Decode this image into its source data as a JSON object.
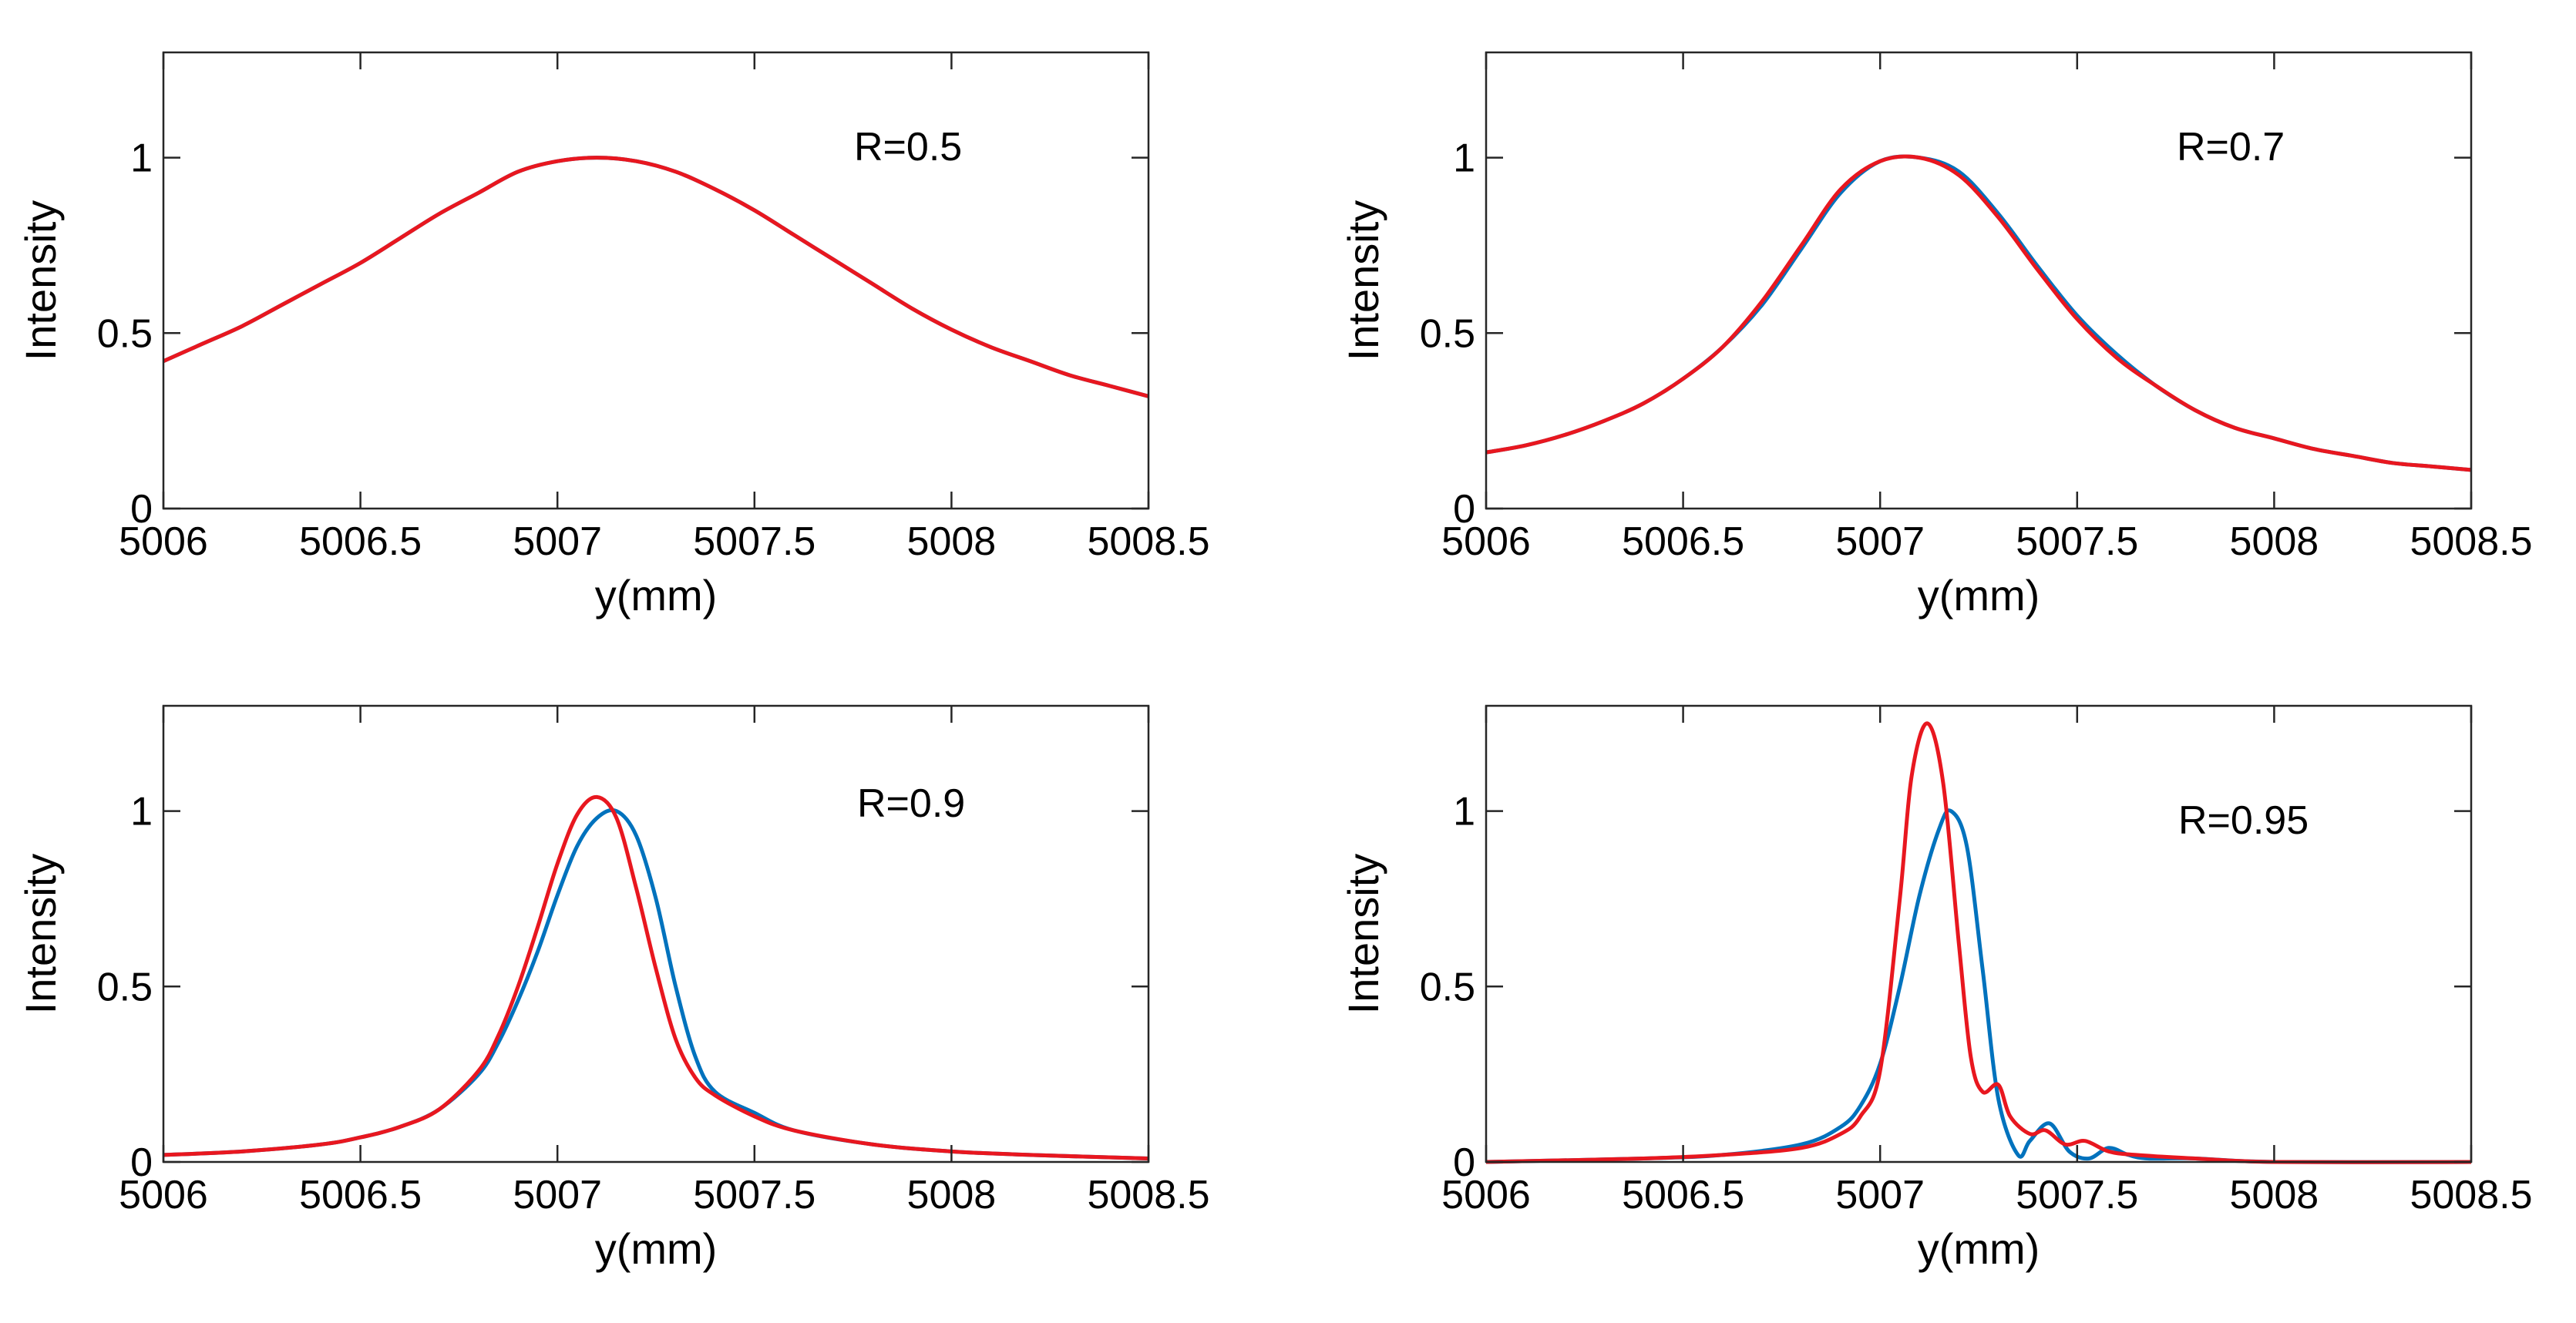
{
  "colors": {
    "series_blue": "#0072BD",
    "series_red": "#E8171F",
    "axis": "#262626"
  },
  "chart_data": [
    {
      "type": "line",
      "xlabel": "y(mm)",
      "ylabel": "Intensity",
      "xlim": [
        5006,
        5008.5
      ],
      "ylim": [
        0,
        1.3
      ],
      "xticks": [
        5006,
        5006.5,
        5007,
        5007.5,
        5008,
        5008.5
      ],
      "xtick_labels": [
        "5006",
        "5006.5",
        "5007",
        "5007.5",
        "5008",
        "5008.5"
      ],
      "yticks": [
        0,
        0.5,
        1
      ],
      "ytick_labels": [
        "0",
        "0.5",
        "1"
      ],
      "annotation": "R=0.5",
      "series": [
        {
          "name": "blue",
          "x": [
            5006,
            5006.1,
            5006.2,
            5006.3,
            5006.4,
            5006.5,
            5006.6,
            5006.7,
            5006.8,
            5006.9,
            5007,
            5007.1,
            5007.2,
            5007.3,
            5007.4,
            5007.5,
            5007.6,
            5007.7,
            5007.8,
            5007.9,
            5008,
            5008.1,
            5008.2,
            5008.3,
            5008.4,
            5008.5
          ],
          "values": [
            0.42,
            0.47,
            0.52,
            0.58,
            0.64,
            0.7,
            0.77,
            0.84,
            0.9,
            0.96,
            0.99,
            1.0,
            0.99,
            0.96,
            0.91,
            0.85,
            0.78,
            0.71,
            0.64,
            0.57,
            0.51,
            0.46,
            0.42,
            0.38,
            0.35,
            0.32
          ]
        },
        {
          "name": "red",
          "x": [
            5006,
            5006.1,
            5006.2,
            5006.3,
            5006.4,
            5006.5,
            5006.6,
            5006.7,
            5006.8,
            5006.9,
            5007,
            5007.1,
            5007.2,
            5007.3,
            5007.4,
            5007.5,
            5007.6,
            5007.7,
            5007.8,
            5007.9,
            5008,
            5008.1,
            5008.2,
            5008.3,
            5008.4,
            5008.5
          ],
          "values": [
            0.42,
            0.47,
            0.52,
            0.58,
            0.64,
            0.7,
            0.77,
            0.84,
            0.9,
            0.96,
            0.99,
            1.0,
            0.99,
            0.96,
            0.91,
            0.85,
            0.78,
            0.71,
            0.64,
            0.57,
            0.51,
            0.46,
            0.42,
            0.38,
            0.35,
            0.32
          ]
        }
      ]
    },
    {
      "type": "line",
      "xlabel": "y(mm)",
      "ylabel": "Intensity",
      "xlim": [
        5006,
        5008.5
      ],
      "ylim": [
        0,
        1.3
      ],
      "xticks": [
        5006,
        5006.5,
        5007,
        5007.5,
        5008,
        5008.5
      ],
      "xtick_labels": [
        "5006",
        "5006.5",
        "5007",
        "5007.5",
        "5008",
        "5008.5"
      ],
      "yticks": [
        0,
        0.5,
        1
      ],
      "ytick_labels": [
        "0",
        "0.5",
        "1"
      ],
      "annotation": "R=0.7",
      "series": [
        {
          "name": "blue",
          "x": [
            5006,
            5006.1,
            5006.2,
            5006.3,
            5006.4,
            5006.5,
            5006.6,
            5006.7,
            5006.8,
            5006.9,
            5007,
            5007.1,
            5007.2,
            5007.3,
            5007.4,
            5007.5,
            5007.6,
            5007.7,
            5007.8,
            5007.9,
            5008,
            5008.1,
            5008.2,
            5008.3,
            5008.4,
            5008.5
          ],
          "values": [
            0.16,
            0.18,
            0.21,
            0.25,
            0.3,
            0.37,
            0.46,
            0.58,
            0.74,
            0.9,
            0.99,
            1.0,
            0.96,
            0.84,
            0.69,
            0.55,
            0.44,
            0.35,
            0.28,
            0.23,
            0.2,
            0.17,
            0.15,
            0.13,
            0.12,
            0.11
          ]
        },
        {
          "name": "red",
          "x": [
            5006,
            5006.1,
            5006.2,
            5006.3,
            5006.4,
            5006.5,
            5006.6,
            5006.7,
            5006.8,
            5006.9,
            5007,
            5007.1,
            5007.2,
            5007.3,
            5007.4,
            5007.5,
            5007.6,
            5007.7,
            5007.8,
            5007.9,
            5008,
            5008.1,
            5008.2,
            5008.3,
            5008.4,
            5008.5
          ],
          "values": [
            0.16,
            0.18,
            0.21,
            0.25,
            0.3,
            0.37,
            0.46,
            0.59,
            0.75,
            0.91,
            0.99,
            1.0,
            0.95,
            0.83,
            0.68,
            0.54,
            0.43,
            0.35,
            0.28,
            0.23,
            0.2,
            0.17,
            0.15,
            0.13,
            0.12,
            0.11
          ]
        }
      ]
    },
    {
      "type": "line",
      "xlabel": "y(mm)",
      "ylabel": "Intensity",
      "xlim": [
        5006,
        5008.5
      ],
      "ylim": [
        0,
        1.3
      ],
      "xticks": [
        5006,
        5006.5,
        5007,
        5007.5,
        5008,
        5008.5
      ],
      "xtick_labels": [
        "5006",
        "5006.5",
        "5007",
        "5007.5",
        "5008",
        "5008.5"
      ],
      "yticks": [
        0,
        0.5,
        1
      ],
      "ytick_labels": [
        "0",
        "0.5",
        "1"
      ],
      "annotation": "R=0.9",
      "series": [
        {
          "name": "blue",
          "x": [
            5006,
            5006.2,
            5006.4,
            5006.5,
            5006.6,
            5006.7,
            5006.8,
            5006.85,
            5006.9,
            5006.95,
            5007,
            5007.05,
            5007.1,
            5007.15,
            5007.2,
            5007.25,
            5007.3,
            5007.35,
            5007.4,
            5007.5,
            5007.6,
            5007.8,
            5008,
            5008.2,
            5008.5
          ],
          "values": [
            0.02,
            0.03,
            0.05,
            0.07,
            0.1,
            0.15,
            0.25,
            0.34,
            0.46,
            0.6,
            0.76,
            0.9,
            0.98,
            1.0,
            0.93,
            0.75,
            0.5,
            0.3,
            0.2,
            0.14,
            0.09,
            0.05,
            0.03,
            0.02,
            0.01
          ]
        },
        {
          "name": "red",
          "x": [
            5006,
            5006.2,
            5006.4,
            5006.5,
            5006.6,
            5006.7,
            5006.8,
            5006.85,
            5006.9,
            5006.95,
            5007,
            5007.05,
            5007.1,
            5007.15,
            5007.2,
            5007.25,
            5007.3,
            5007.35,
            5007.4,
            5007.5,
            5007.6,
            5007.8,
            5008,
            5008.2,
            5008.5
          ],
          "values": [
            0.02,
            0.03,
            0.05,
            0.07,
            0.1,
            0.15,
            0.26,
            0.36,
            0.5,
            0.67,
            0.85,
            0.99,
            1.04,
            0.98,
            0.78,
            0.55,
            0.35,
            0.24,
            0.19,
            0.13,
            0.09,
            0.05,
            0.03,
            0.02,
            0.01
          ]
        }
      ]
    },
    {
      "type": "line",
      "xlabel": "y(mm)",
      "ylabel": "Intensity",
      "xlim": [
        5006,
        5008.5
      ],
      "ylim": [
        0,
        1.3
      ],
      "xticks": [
        5006,
        5006.5,
        5007,
        5007.5,
        5008,
        5008.5
      ],
      "xtick_labels": [
        "5006",
        "5006.5",
        "5007",
        "5007.5",
        "5008",
        "5008.5"
      ],
      "yticks": [
        0,
        0.5,
        1
      ],
      "ytick_labels": [
        "0",
        "0.5",
        "1"
      ],
      "annotation": "R=0.95",
      "series": [
        {
          "name": "blue",
          "x": [
            5006,
            5006.4,
            5006.6,
            5006.8,
            5006.9,
            5006.95,
            5007,
            5007.05,
            5007.1,
            5007.15,
            5007.18,
            5007.22,
            5007.26,
            5007.3,
            5007.35,
            5007.38,
            5007.43,
            5007.48,
            5007.53,
            5007.58,
            5007.63,
            5007.68,
            5007.8,
            5008,
            5008.5
          ],
          "values": [
            0.0,
            0.01,
            0.02,
            0.05,
            0.1,
            0.16,
            0.28,
            0.5,
            0.76,
            0.95,
            1.0,
            0.9,
            0.55,
            0.18,
            0.02,
            0.06,
            0.11,
            0.03,
            0.01,
            0.04,
            0.02,
            0.01,
            0.01,
            0.0,
            0.0
          ]
        },
        {
          "name": "red",
          "x": [
            5006,
            5006.4,
            5006.6,
            5006.8,
            5006.9,
            5006.95,
            5007,
            5007.05,
            5007.08,
            5007.12,
            5007.16,
            5007.2,
            5007.23,
            5007.26,
            5007.3,
            5007.33,
            5007.38,
            5007.42,
            5007.47,
            5007.52,
            5007.58,
            5007.65,
            5007.8,
            5008,
            5008.5
          ],
          "values": [
            0.0,
            0.01,
            0.02,
            0.04,
            0.08,
            0.13,
            0.26,
            0.75,
            1.1,
            1.25,
            1.08,
            0.62,
            0.3,
            0.2,
            0.22,
            0.13,
            0.08,
            0.09,
            0.05,
            0.06,
            0.03,
            0.02,
            0.01,
            0.0,
            0.0
          ]
        }
      ]
    }
  ]
}
